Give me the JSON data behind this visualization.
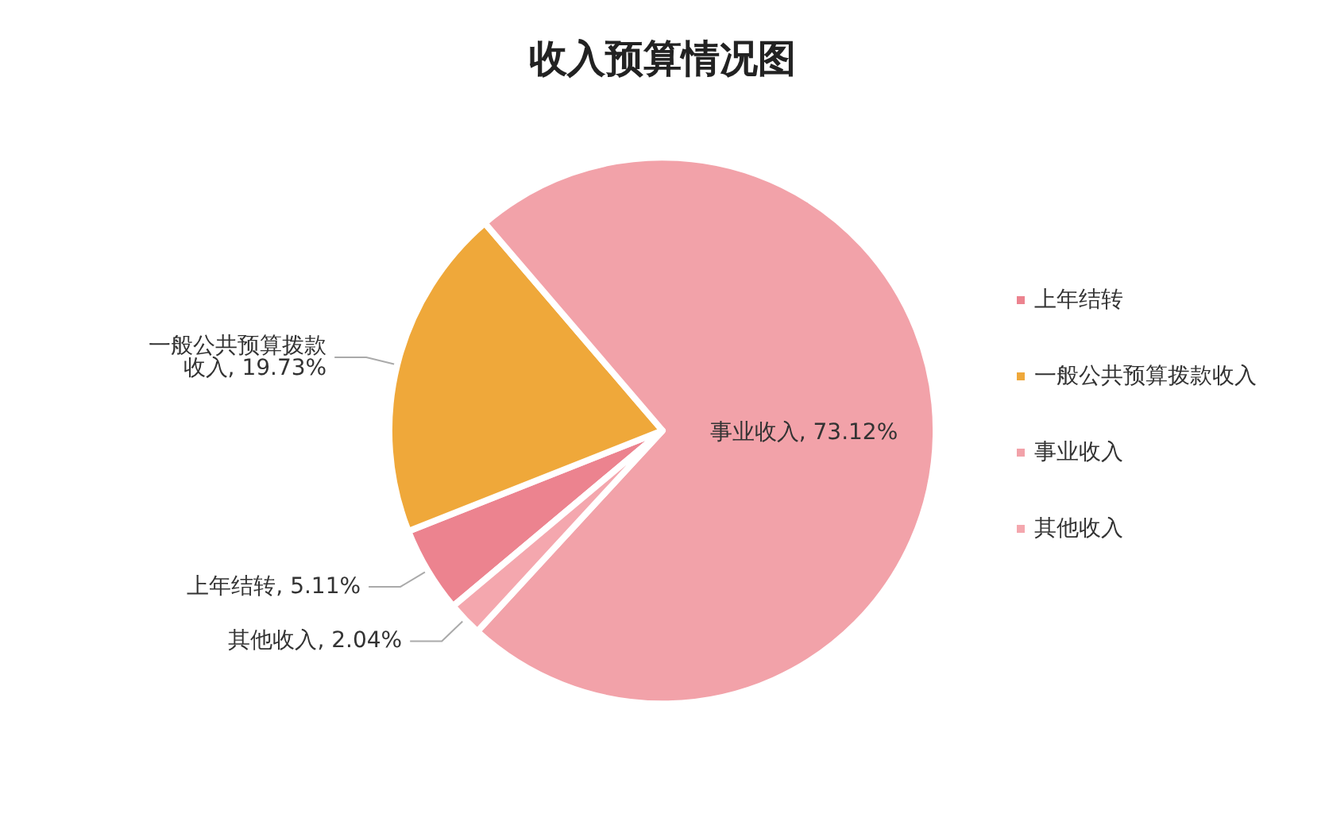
{
  "chart_data": {
    "type": "pie",
    "title": "收入预算情况图",
    "categories": [
      "上年结转",
      "一般公共预算拨款收入",
      "事业收入",
      "其他收入"
    ],
    "values": [
      5.11,
      19.73,
      73.12,
      2.04
    ],
    "colors": [
      "#ec838f",
      "#efa83a",
      "#f2a2a9",
      "#f4a7ae"
    ],
    "value_labels": [
      "上年结转, 5.11%",
      "一般公共预算拨款收入, 19.73%",
      "事业收入, 73.12%",
      "其他收入, 2.04%"
    ],
    "legend": "right"
  }
}
